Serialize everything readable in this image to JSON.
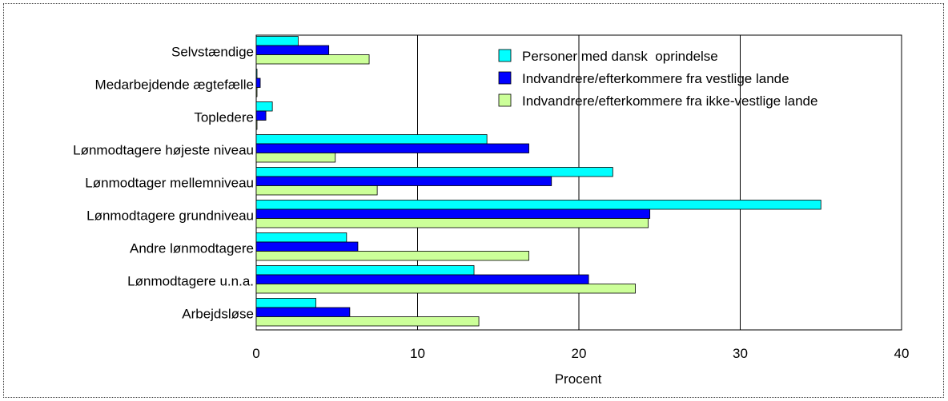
{
  "chart_data": {
    "type": "bar",
    "orientation": "horizontal",
    "title": "",
    "xlabel": "Procent",
    "ylabel": "",
    "xlim": [
      0,
      40
    ],
    "xticks": [
      0,
      10,
      20,
      30,
      40
    ],
    "grid": "vertical",
    "legend_position": "top-right",
    "categories": [
      "Selvstændige",
      "Medarbejdende ægtefælle",
      "Topledere",
      "Lønmodtagere højeste niveau",
      "Lønmodtager mellemniveau",
      "Lønmodtagere grundniveau",
      "Andre lønmodtagere",
      "Lønmodtagere u.n.a.",
      "Arbejdsløse"
    ],
    "series": [
      {
        "name": "Personer med dansk  oprindelse",
        "color": "#00ffff",
        "values": [
          2.6,
          0.05,
          1.0,
          14.3,
          22.1,
          35.0,
          5.6,
          13.5,
          3.7
        ]
      },
      {
        "name": "Indvandrere/efterkommere fra vestlige lande",
        "color": "#0000ff",
        "values": [
          4.5,
          0.25,
          0.6,
          16.9,
          18.3,
          24.4,
          6.3,
          20.6,
          5.8
        ]
      },
      {
        "name": "Indvandrere/efterkommere fra ikke-vestlige lande",
        "color": "#ccff99",
        "values": [
          7.0,
          0.05,
          0.05,
          4.9,
          7.5,
          24.3,
          16.9,
          23.5,
          13.8
        ]
      }
    ]
  }
}
